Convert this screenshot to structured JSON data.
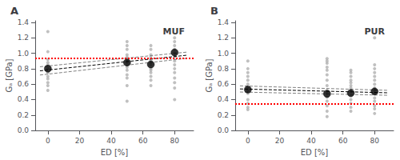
{
  "chart_data": [
    {
      "type": "scatter",
      "annotations": [
        "A"
      ],
      "title": "MUF",
      "xlabel": "ED [%]",
      "ylabel": "Gₐ [GPa]",
      "xlim": [
        -8,
        92
      ],
      "ylim": [
        0.0,
        1.42
      ],
      "xticks": [
        0,
        20,
        40,
        60,
        80
      ],
      "yticks": [
        {
          "value": 0.0,
          "label": "0.0"
        },
        0.2,
        0.4,
        0.6,
        0.8,
        {
          "value": 1.0,
          "label": "1.0"
        },
        1.2,
        1.4
      ],
      "grid": false,
      "series": [
        {
          "type": "scatter",
          "marker": "dot",
          "color": "#b0b0b0",
          "x": [
            0,
            0,
            0,
            0,
            0,
            0,
            0,
            0,
            0,
            0,
            0,
            0,
            50,
            50,
            50,
            50,
            50,
            50,
            50,
            50,
            50,
            50,
            50,
            50,
            50,
            50,
            50,
            65,
            65,
            65,
            65,
            65,
            65,
            65,
            65,
            65,
            65,
            65,
            65,
            65,
            65,
            80,
            80,
            80,
            80,
            80,
            80,
            80,
            80,
            80,
            80,
            80,
            80,
            80,
            80
          ],
          "values": [
            0.52,
            0.58,
            0.62,
            0.67,
            0.7,
            0.75,
            0.8,
            0.85,
            0.88,
            0.92,
            1.02,
            1.28,
            0.38,
            0.58,
            0.68,
            0.72,
            0.78,
            0.82,
            0.88,
            0.88,
            0.9,
            0.92,
            0.95,
            0.98,
            1.05,
            1.1,
            1.15,
            0.58,
            0.65,
            0.7,
            0.75,
            0.78,
            0.8,
            0.85,
            0.88,
            0.9,
            0.92,
            0.95,
            0.98,
            1.05,
            1.1,
            0.4,
            0.55,
            0.62,
            0.68,
            0.75,
            0.8,
            0.85,
            0.9,
            0.95,
            1.0,
            1.05,
            1.1,
            1.15,
            1.2
          ]
        },
        {
          "type": "line",
          "line_style": "dashed",
          "color": "#808080",
          "x": [
            -5,
            88
          ],
          "values": [
            0.825,
            1.015
          ]
        },
        {
          "type": "line",
          "line_style": "dashed",
          "color": "#808080",
          "x": [
            -5,
            88
          ],
          "values": [
            0.718,
            0.935
          ]
        },
        {
          "type": "line",
          "line_style": "dashed",
          "color": "#000000",
          "x": [
            -5,
            88
          ],
          "values": [
            0.772,
            0.975
          ]
        },
        {
          "type": "hline",
          "line_style": "dotted",
          "color": "#ff0000",
          "values": [
            0.935
          ]
        },
        {
          "type": "scatter",
          "marker": "circle",
          "color": "#000000",
          "x": [
            0,
            50,
            65,
            80
          ],
          "values": [
            0.8,
            0.88,
            0.855,
            1.01
          ]
        }
      ]
    },
    {
      "type": "scatter",
      "annotations": [
        "B"
      ],
      "title": "PUR",
      "xlabel": "ED [%]",
      "ylabel": "Gₐ [GPa]",
      "xlim": [
        -8,
        92
      ],
      "ylim": [
        0.0,
        1.42
      ],
      "xticks": [
        0,
        20,
        40,
        60,
        80
      ],
      "yticks": [
        {
          "value": 0.0,
          "label": "0.0"
        },
        0.2,
        0.4,
        0.6,
        0.8,
        {
          "value": 1.0,
          "label": "1.0"
        },
        1.2,
        1.4
      ],
      "grid": false,
      "series": [
        {
          "type": "scatter",
          "marker": "dot",
          "color": "#b0b0b0",
          "x": [
            0,
            0,
            0,
            0,
            0,
            0,
            0,
            0,
            0,
            0,
            0,
            0,
            0,
            50,
            50,
            50,
            50,
            50,
            50,
            50,
            50,
            50,
            50,
            50,
            50,
            50,
            50,
            50,
            65,
            65,
            65,
            65,
            65,
            65,
            65,
            65,
            65,
            65,
            65,
            65,
            65,
            65,
            80,
            80,
            80,
            80,
            80,
            80,
            80,
            80,
            80,
            80,
            80,
            80,
            80,
            80,
            80
          ],
          "values": [
            0.27,
            0.3,
            0.35,
            0.4,
            0.48,
            0.52,
            0.55,
            0.6,
            0.65,
            0.7,
            0.75,
            0.8,
            0.9,
            0.18,
            0.25,
            0.32,
            0.38,
            0.43,
            0.48,
            0.52,
            0.58,
            0.65,
            0.72,
            0.78,
            0.82,
            0.87,
            0.9,
            0.93,
            0.25,
            0.3,
            0.35,
            0.4,
            0.45,
            0.5,
            0.52,
            0.55,
            0.58,
            0.62,
            0.65,
            0.7,
            0.75,
            0.78,
            0.22,
            0.28,
            0.32,
            0.38,
            0.42,
            0.48,
            0.52,
            0.55,
            0.6,
            0.65,
            0.7,
            0.75,
            0.8,
            1.2,
            0.85
          ]
        },
        {
          "type": "line",
          "line_style": "dashed",
          "color": "#808080",
          "x": [
            -5,
            88
          ],
          "values": [
            0.578,
            0.52
          ]
        },
        {
          "type": "line",
          "line_style": "dashed",
          "color": "#808080",
          "x": [
            -5,
            88
          ],
          "values": [
            0.498,
            0.456
          ]
        },
        {
          "type": "line",
          "line_style": "dashed",
          "color": "#000000",
          "x": [
            -5,
            88
          ],
          "values": [
            0.538,
            0.488
          ]
        },
        {
          "type": "hline",
          "line_style": "dotted",
          "color": "#ff0000",
          "values": [
            0.355
          ]
        },
        {
          "type": "scatter",
          "marker": "circle",
          "color": "#000000",
          "x": [
            0,
            50,
            65,
            80
          ],
          "values": [
            0.53,
            0.475,
            0.485,
            0.505
          ]
        }
      ]
    }
  ]
}
